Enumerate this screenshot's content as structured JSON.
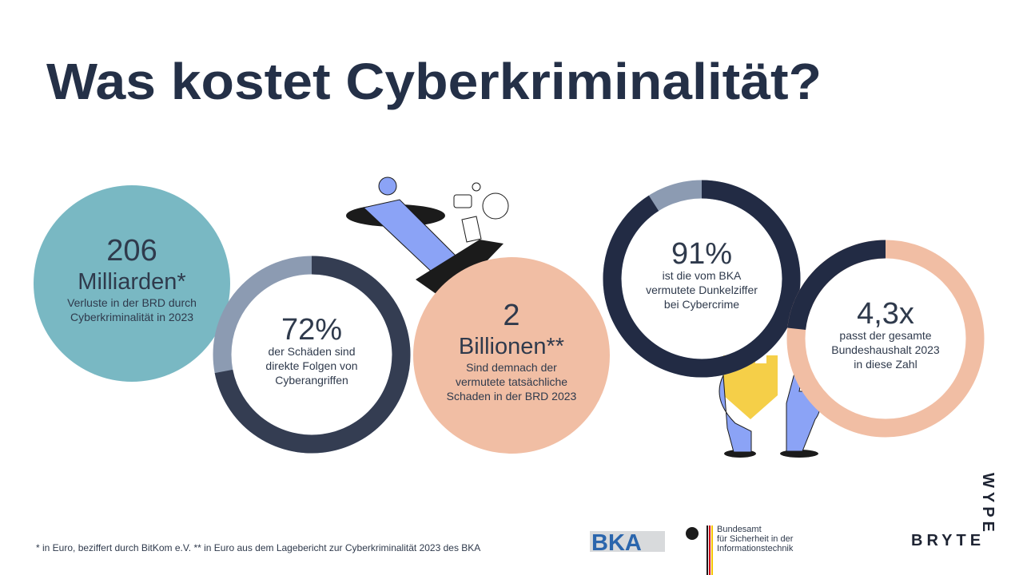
{
  "title": "Was kostet Cyberkriminalität?",
  "stats": [
    {
      "type": "disc",
      "value": 206,
      "unit": "Milliarden*",
      "lines": [
        "Verluste in der BRD durch",
        "Cyberkriminalität in 2023"
      ],
      "color": "#79b8c3"
    },
    {
      "type": "donut",
      "scale": "percent",
      "value": 72,
      "value_label": "72%",
      "lines": [
        "der Schäden sind",
        "direkte Folgen von",
        "Cyberangriffen"
      ],
      "color": "#343d52",
      "track_color": "#8c9bb2"
    },
    {
      "type": "disc",
      "value": 2,
      "unit": "Billionen**",
      "lines": [
        "Sind demnach der",
        "vermutete tatsächliche",
        "Schaden in der BRD 2023"
      ],
      "color": "#f1bea4"
    },
    {
      "type": "donut",
      "scale": "percent",
      "value": 91,
      "value_label": "91%",
      "lines": [
        "ist die vom BKA",
        "vermutete Dunkelziffer",
        "bei Cybercrime"
      ],
      "color": "#222b44",
      "track_color": "#8c9bb2"
    },
    {
      "type": "donut",
      "scale": "ratio",
      "value": 4.3,
      "value_label": "4,3x",
      "lines": [
        "passt der gesamte",
        "Bundeshaushalt 2023",
        "in diese Zahl"
      ],
      "color": "#222b44",
      "track_color": "#f1bea4"
    }
  ],
  "footnote": "* in Euro, beziffert durch BitKom e.V.  ** in Euro aus dem Lagebericht zur Cyberkriminalität 2023 des BKA",
  "logos": {
    "bka": "BKA",
    "bsi": [
      "Bundesamt",
      "für Sicherheit in der",
      "Informationstechnik"
    ],
    "brand": "BRYTE",
    "brand_vertical": "WYPE"
  }
}
